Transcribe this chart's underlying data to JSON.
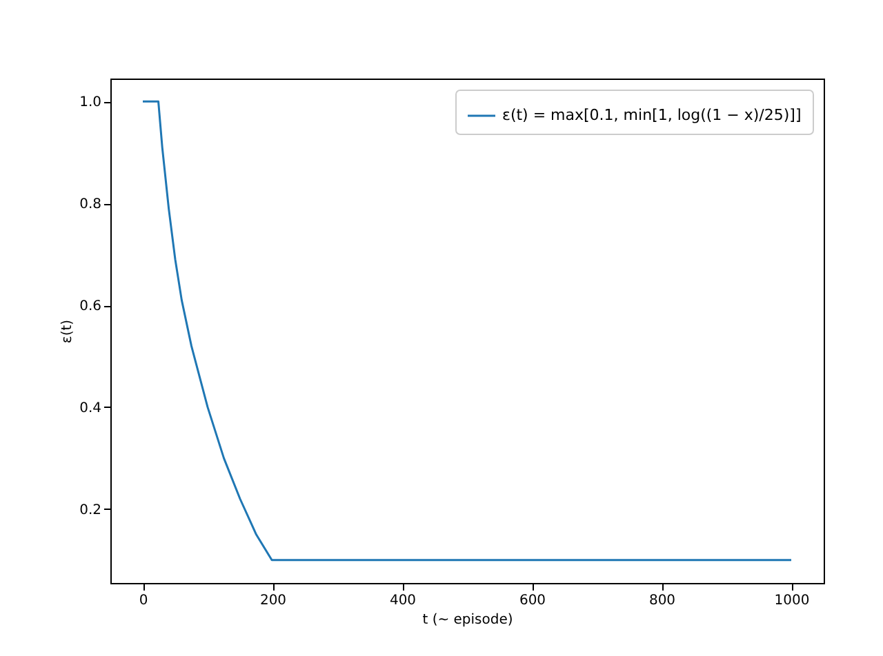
{
  "chart_data": {
    "type": "line",
    "xlabel": "t (~ episode)",
    "ylabel": "ε(t)",
    "x": [
      0,
      24,
      30,
      40,
      50,
      60,
      75,
      100,
      125,
      150,
      175,
      199,
      1000
    ],
    "series": [
      {
        "name": "ε(t) = max[0.1, min[1, log((1 − x)/25)]]",
        "color": "#1f77b4",
        "values": [
          1.0,
          1.0,
          0.91,
          0.79,
          0.69,
          0.61,
          0.52,
          0.4,
          0.3,
          0.22,
          0.15,
          0.1,
          0.1
        ]
      }
    ],
    "xlim": [
      -50,
      1050
    ],
    "ylim": [
      0.055,
      1.045
    ],
    "xticks": [
      0,
      200,
      400,
      600,
      800,
      1000
    ],
    "yticks": [
      0.2,
      0.4,
      0.6,
      0.8,
      {
        "value": 1,
        "label": "1.0"
      }
    ],
    "grid": false,
    "legend": "top right",
    "marker": "none",
    "line_style": "solid"
  }
}
